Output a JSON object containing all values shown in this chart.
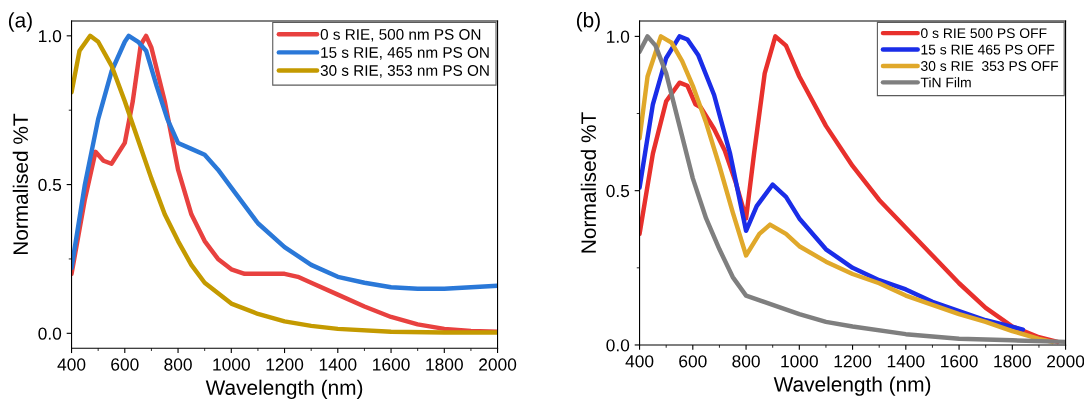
{
  "chart_data": [
    {
      "type": "line",
      "title": "(a)",
      "xlabel": "Wavelength (nm)",
      "ylabel": "Normalised %T",
      "xlim": [
        400,
        2000
      ],
      "ylim": [
        -0.05,
        1.05
      ],
      "xticks": [
        400,
        600,
        800,
        1000,
        1200,
        1400,
        1600,
        1800,
        2000
      ],
      "yticks": [
        {
          "value": 0,
          "label": "0.0"
        },
        {
          "value": 0.5,
          "label": "0.5"
        },
        {
          "value": 1,
          "label": "1.0"
        }
      ],
      "grid": false,
      "legend": "top right",
      "marker": "none",
      "line_style": "solid",
      "series": [
        {
          "name": "0 s RIE, 500 nm PS ON",
          "color": "#e8413f",
          "x": [
            400,
            450,
            490,
            520,
            550,
            600,
            630,
            660,
            680,
            700,
            750,
            800,
            850,
            900,
            950,
            1000,
            1050,
            1100,
            1200,
            1250,
            1300,
            1400,
            1500,
            1600,
            1700,
            1800,
            1900,
            2000
          ],
          "values": [
            0.2,
            0.45,
            0.61,
            0.58,
            0.57,
            0.64,
            0.78,
            0.97,
            1.0,
            0.96,
            0.78,
            0.55,
            0.4,
            0.31,
            0.25,
            0.215,
            0.2,
            0.2,
            0.2,
            0.19,
            0.17,
            0.13,
            0.09,
            0.055,
            0.03,
            0.015,
            0.008,
            0.005
          ]
        },
        {
          "name": "15 s RIE, 465 nm PS ON",
          "color": "#2a78d8",
          "x": [
            400,
            450,
            500,
            550,
            600,
            615,
            650,
            680,
            720,
            760,
            800,
            850,
            900,
            950,
            1000,
            1100,
            1200,
            1300,
            1400,
            1500,
            1600,
            1700,
            1800,
            1900,
            2000
          ],
          "values": [
            0.22,
            0.5,
            0.72,
            0.88,
            0.98,
            1.0,
            0.98,
            0.95,
            0.83,
            0.72,
            0.64,
            0.62,
            0.6,
            0.55,
            0.49,
            0.37,
            0.29,
            0.23,
            0.19,
            0.17,
            0.155,
            0.15,
            0.15,
            0.155,
            0.16
          ]
        },
        {
          "name": "30 s RIE, 353 nm PS ON",
          "color": "#c49a00",
          "x": [
            400,
            430,
            470,
            500,
            550,
            600,
            650,
            700,
            750,
            800,
            850,
            900,
            1000,
            1100,
            1200,
            1300,
            1400,
            1600,
            1800,
            2000
          ],
          "values": [
            0.81,
            0.95,
            1.0,
            0.98,
            0.9,
            0.78,
            0.65,
            0.52,
            0.4,
            0.31,
            0.23,
            0.17,
            0.1,
            0.065,
            0.04,
            0.025,
            0.015,
            0.005,
            0.003,
            0.003
          ]
        }
      ]
    },
    {
      "type": "line",
      "title": "(b)",
      "xlabel": "Wavelength (nm)",
      "ylabel": "Normalised %T",
      "xlim": [
        400,
        2000
      ],
      "ylim": [
        0,
        1.05
      ],
      "xticks": [
        400,
        600,
        800,
        1000,
        1200,
        1400,
        1600,
        1800,
        2000
      ],
      "yticks": [
        {
          "value": 0,
          "label": "0.0"
        },
        {
          "value": 0.5,
          "label": "0.5"
        },
        {
          "value": 1,
          "label": "1.0"
        }
      ],
      "grid": false,
      "legend": "top right",
      "marker": "none",
      "line_style": "solid",
      "series": [
        {
          "name": "0 s RIE 500 PS OFF",
          "color": "#e8302c",
          "x": [
            400,
            450,
            500,
            550,
            580,
            610,
            630,
            680,
            720,
            760,
            800,
            830,
            870,
            910,
            950,
            1000,
            1100,
            1200,
            1300,
            1400,
            1500,
            1600,
            1700,
            1800,
            1900,
            1970
          ],
          "values": [
            0.36,
            0.62,
            0.79,
            0.85,
            0.84,
            0.78,
            0.77,
            0.7,
            0.63,
            0.53,
            0.41,
            0.62,
            0.88,
            1.0,
            0.97,
            0.87,
            0.71,
            0.58,
            0.47,
            0.38,
            0.29,
            0.2,
            0.12,
            0.06,
            0.025,
            0.01
          ]
        },
        {
          "name": "15 s RIE 465 PS OFF",
          "color": "#1a2de8",
          "x": [
            400,
            450,
            500,
            550,
            580,
            620,
            680,
            740,
            800,
            840,
            900,
            950,
            1000,
            1100,
            1200,
            1300,
            1400,
            1500,
            1600,
            1700,
            1840
          ],
          "values": [
            0.51,
            0.78,
            0.93,
            1.0,
            0.99,
            0.94,
            0.81,
            0.62,
            0.37,
            0.45,
            0.52,
            0.48,
            0.41,
            0.31,
            0.25,
            0.21,
            0.18,
            0.14,
            0.11,
            0.08,
            0.05
          ]
        },
        {
          "name": "30 s RIE  353 PS OFF",
          "color": "#e0a82a",
          "x": [
            400,
            430,
            480,
            520,
            560,
            600,
            650,
            700,
            750,
            800,
            850,
            890,
            950,
            1000,
            1100,
            1200,
            1300,
            1400,
            1500,
            1600,
            1700,
            1800,
            1900,
            1950
          ],
          "values": [
            0.67,
            0.87,
            1.0,
            0.98,
            0.92,
            0.84,
            0.72,
            0.58,
            0.43,
            0.29,
            0.36,
            0.39,
            0.36,
            0.32,
            0.27,
            0.23,
            0.2,
            0.16,
            0.13,
            0.1,
            0.075,
            0.045,
            0.02,
            0.01
          ]
        },
        {
          "name": "TiN Film",
          "color": "#7f7f7f",
          "x": [
            400,
            430,
            460,
            500,
            550,
            600,
            650,
            700,
            750,
            800,
            900,
            1000,
            1100,
            1200,
            1400,
            1600,
            1800,
            2000
          ],
          "values": [
            0.95,
            1.0,
            0.97,
            0.88,
            0.71,
            0.54,
            0.41,
            0.31,
            0.22,
            0.16,
            0.13,
            0.1,
            0.075,
            0.06,
            0.035,
            0.02,
            0.015,
            0.01
          ]
        }
      ]
    }
  ]
}
